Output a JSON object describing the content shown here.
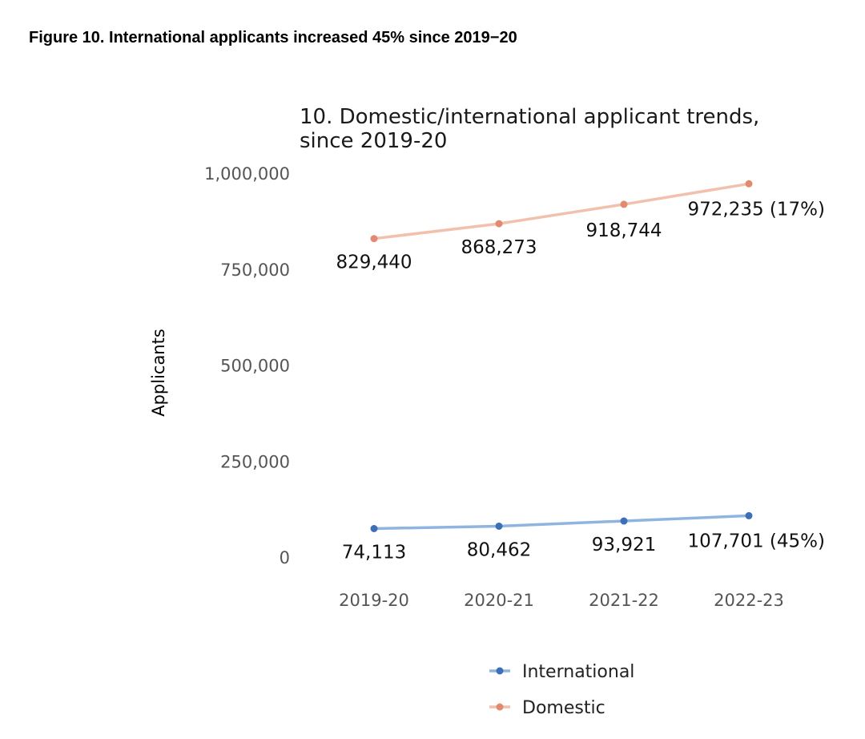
{
  "figure_title": "Figure 10. International applicants increased 45% since 2019−20",
  "chart_data": {
    "type": "line",
    "title_lines": [
      "10. Domestic/international applicant trends,",
      "since 2019-20"
    ],
    "xlabel": "",
    "ylabel": "Applicants",
    "categories": [
      "2019-20",
      "2020-21",
      "2021-22",
      "2022-23"
    ],
    "ylim": [
      0,
      1000000
    ],
    "yticks": [
      0,
      250000,
      500000,
      750000,
      1000000
    ],
    "ytick_labels": [
      "0",
      "250,000",
      "500,000",
      "750,000",
      "1,000,000"
    ],
    "grid": false,
    "legend_position": "bottom",
    "series": [
      {
        "name": "International",
        "color": "#8fb4e0",
        "marker_color": "#3b6fb6",
        "values": [
          74113,
          80462,
          93921,
          107701
        ],
        "labels": [
          "74,113",
          "80,462",
          "93,921",
          "107,701 (45%)"
        ]
      },
      {
        "name": "Domestic",
        "color": "#f2c1ae",
        "marker_color": "#e08a70",
        "values": [
          829440,
          868273,
          918744,
          972235
        ],
        "labels": [
          "829,440",
          "868,273",
          "918,744",
          "972,235 (17%)"
        ]
      }
    ]
  }
}
